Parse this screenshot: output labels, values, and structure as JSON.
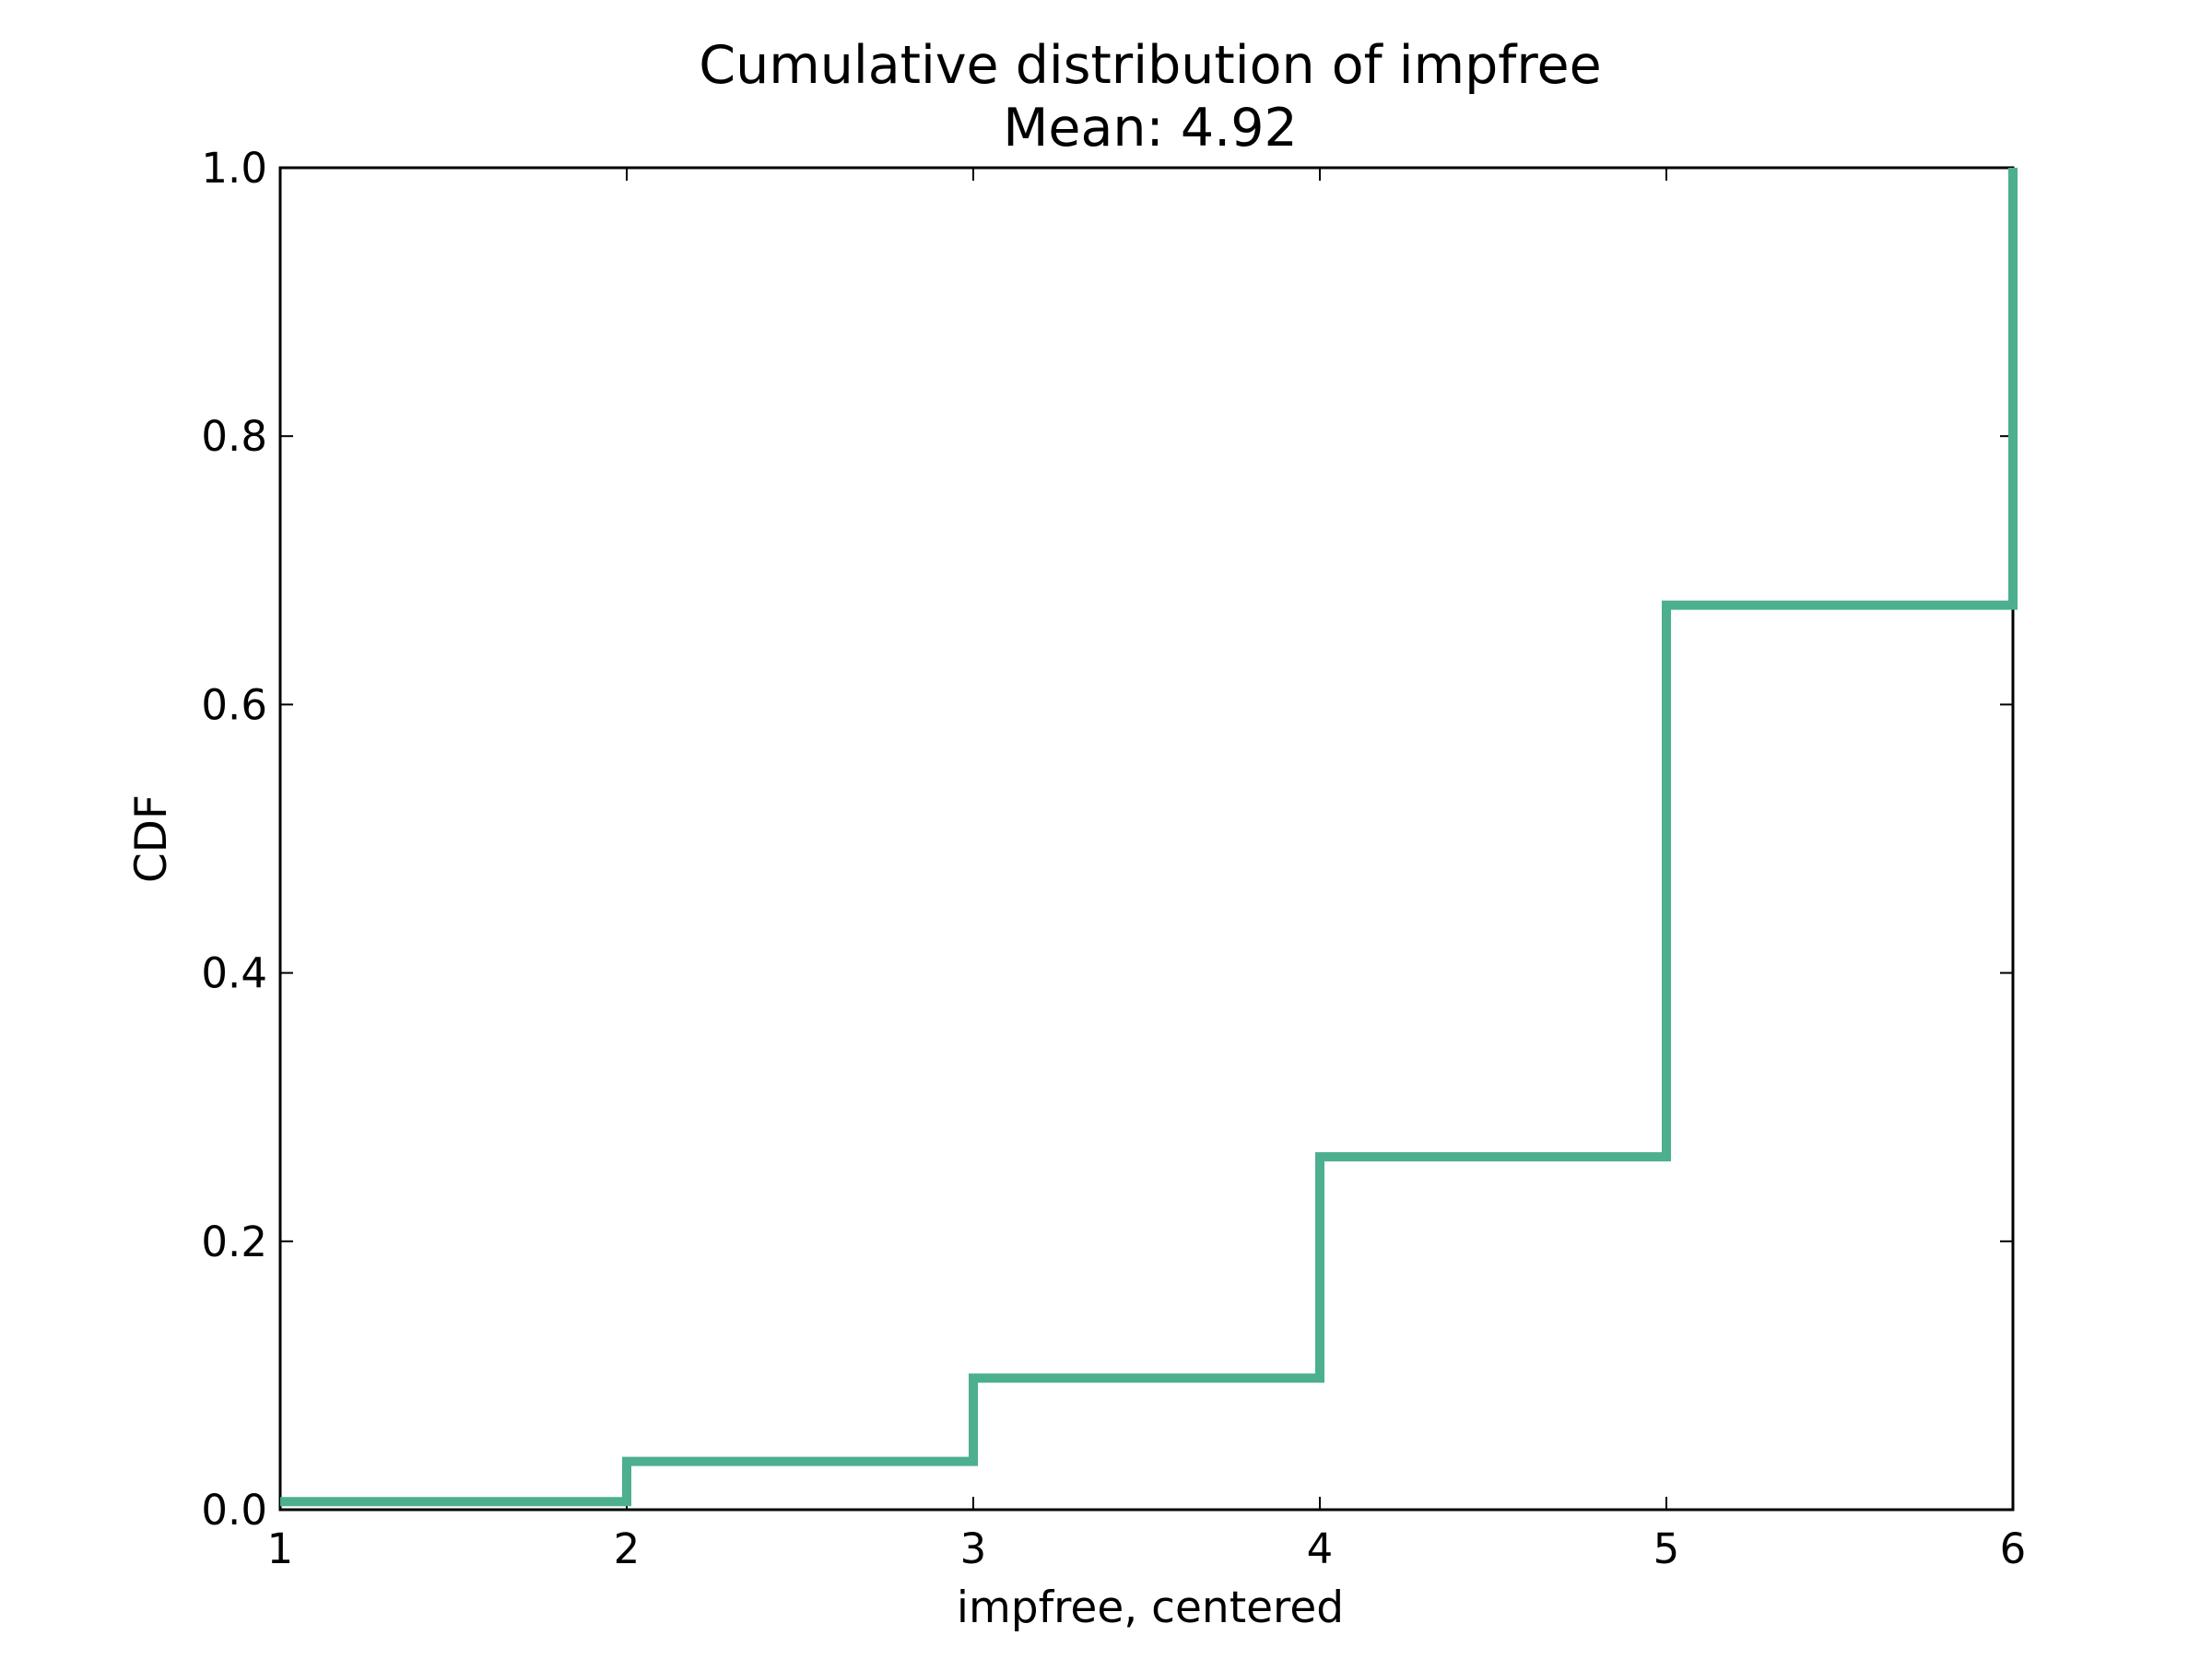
{
  "chart_data": {
    "type": "line",
    "subtype": "step-cdf",
    "title": "Cumulative distribution of impfree",
    "subtitle": "Mean: 4.92",
    "xlabel": "impfree, centered",
    "ylabel": "CDF",
    "xlim": [
      1,
      6
    ],
    "ylim": [
      0,
      1
    ],
    "x_ticks": [
      1,
      2,
      3,
      4,
      5,
      6
    ],
    "y_ticks": [
      0.0,
      0.2,
      0.4,
      0.6,
      0.8,
      1.0
    ],
    "x_tick_labels": [
      "1",
      "2",
      "3",
      "4",
      "5",
      "6"
    ],
    "y_tick_labels": [
      "0.0",
      "0.2",
      "0.4",
      "0.6",
      "0.8",
      "1.0"
    ],
    "grid": false,
    "legend": "none",
    "series": [
      {
        "color": "#4caf8f",
        "points": [
          {
            "x": 1,
            "y": 0.006
          },
          {
            "x": 2,
            "y": 0.036
          },
          {
            "x": 3,
            "y": 0.098
          },
          {
            "x": 4,
            "y": 0.263
          },
          {
            "x": 5,
            "y": 0.674
          },
          {
            "x": 6,
            "y": 1.0
          }
        ]
      }
    ]
  }
}
